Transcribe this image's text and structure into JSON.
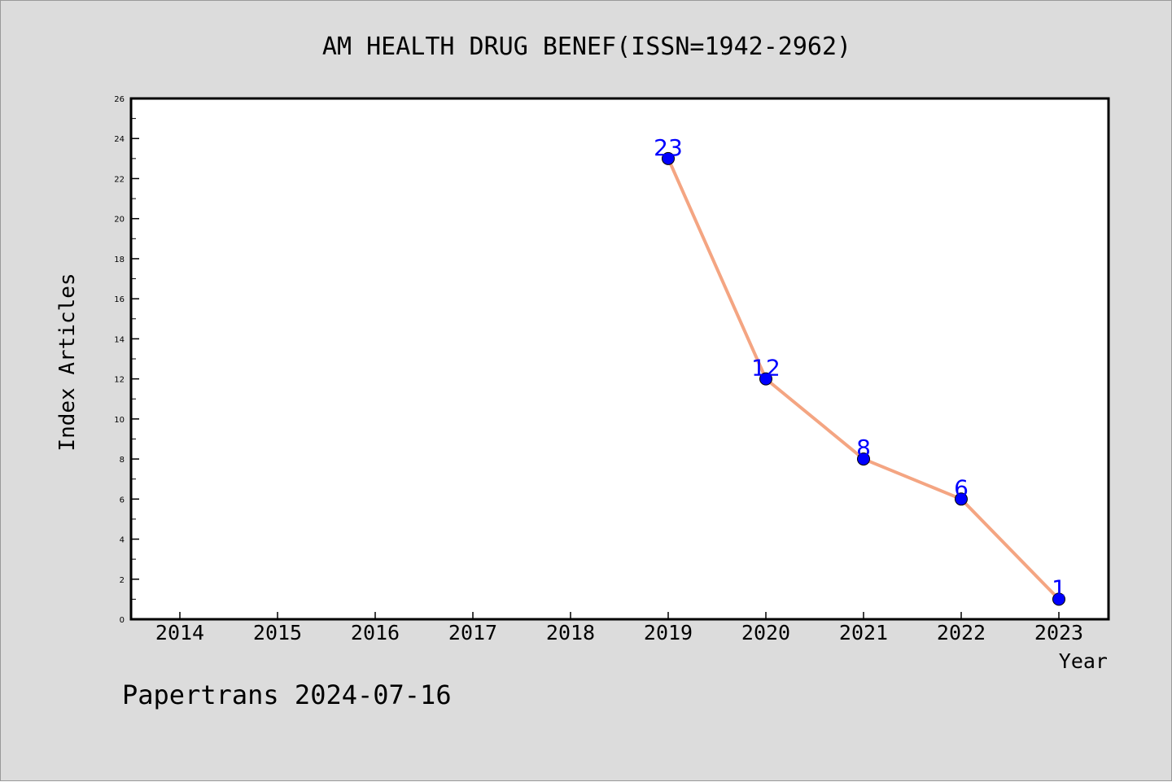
{
  "chart_data": {
    "type": "line",
    "title": "AM HEALTH DRUG BENEF(ISSN=1942-2962)",
    "xlabel": "Year",
    "ylabel": "Index Articles",
    "categories": [
      "2014",
      "2015",
      "2016",
      "2017",
      "2018",
      "2019",
      "2020",
      "2021",
      "2022",
      "2023"
    ],
    "series": [
      {
        "x": [
          "2019",
          "2020",
          "2021",
          "2022",
          "2023"
        ],
        "values": [
          23,
          12,
          8,
          6,
          1
        ]
      }
    ],
    "ylim": [
      0,
      26
    ],
    "yticks": [
      0,
      2,
      4,
      6,
      8,
      10,
      12,
      14,
      16,
      18,
      20,
      22,
      24,
      26
    ],
    "grid": false,
    "legend": "none",
    "footer": "Papertrans 2024-07-16",
    "colors": {
      "background": "#dcdcdc",
      "plot_area": "#ffffff",
      "line": "#f4a582",
      "marker": "#0000ff",
      "data_label": "#0000ff",
      "text": "#000000"
    }
  }
}
